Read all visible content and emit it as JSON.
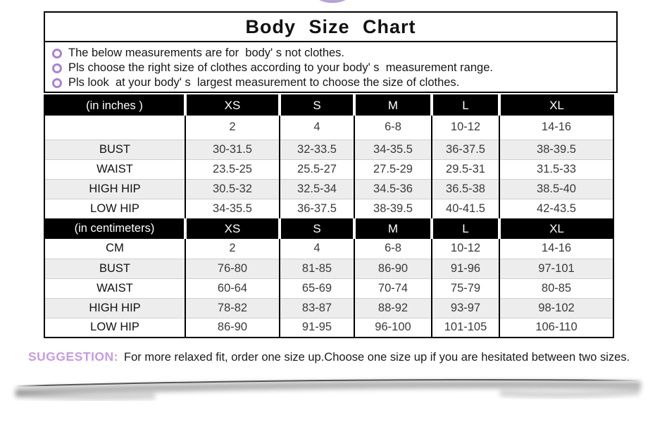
{
  "title": "Body Size Chart",
  "notes": [
    "The below measurements are for  body' s not clothes.",
    "Pls choose the right size of clothes according to your body' s  measurement range.",
    "Pls look  at your body' s  largest measurement to choose the size of clothes."
  ],
  "table": {
    "sections": [
      {
        "header_label": "(in  inches )",
        "sizes": [
          "XS",
          "S",
          "M",
          "L",
          "XL"
        ],
        "rows": [
          {
            "label": "",
            "values": [
              "2",
              "4",
              "6-8",
              "10-12",
              "14-16"
            ]
          },
          {
            "label": "BUST",
            "values": [
              "30-31.5",
              "32-33.5",
              "34-35.5",
              "36-37.5",
              "38-39.5"
            ]
          },
          {
            "label": "WAIST",
            "values": [
              "23.5-25",
              "25.5-27",
              "27.5-29",
              "29.5-31",
              "31.5-33"
            ]
          },
          {
            "label": "HIGH HIP",
            "values": [
              "30.5-32",
              "32.5-34",
              "34.5-36",
              "36.5-38",
              "38.5-40"
            ]
          },
          {
            "label": "LOW HIP",
            "values": [
              "34-35.5",
              "36-37.5",
              "38-39.5",
              "40-41.5",
              "42-43.5"
            ]
          }
        ]
      },
      {
        "header_label": "(in centimeters)",
        "sizes": [
          "XS",
          "S",
          "M",
          "L",
          "XL"
        ],
        "rows": [
          {
            "label": "CM",
            "values": [
              "2",
              "4",
              "6-8",
              "10-12",
              "14-16"
            ]
          },
          {
            "label": "BUST",
            "values": [
              "76-80",
              "81-85",
              "86-90",
              "91-96",
              "97-101"
            ]
          },
          {
            "label": "WAIST",
            "values": [
              "60-64",
              "65-69",
              "70-74",
              "75-79",
              "80-85"
            ]
          },
          {
            "label": "HIGH HIP",
            "values": [
              "78-82",
              "83-87",
              "88-92",
              "93-97",
              "98-102"
            ]
          },
          {
            "label": "LOW HIP",
            "values": [
              "86-90",
              "91-95",
              "96-100",
              "101-105",
              "106-110"
            ]
          }
        ]
      }
    ]
  },
  "suggestion": {
    "label": "SUGGESTION:",
    "text": "For more relaxed fit, order one size up.Choose one size up if you are hesitated between two sizes."
  },
  "colors": {
    "bullet_purple": "#a982d9",
    "suggestion_purple": "#c79ae6",
    "header_bg": "#000000",
    "stripe_gray": "#ededed"
  }
}
